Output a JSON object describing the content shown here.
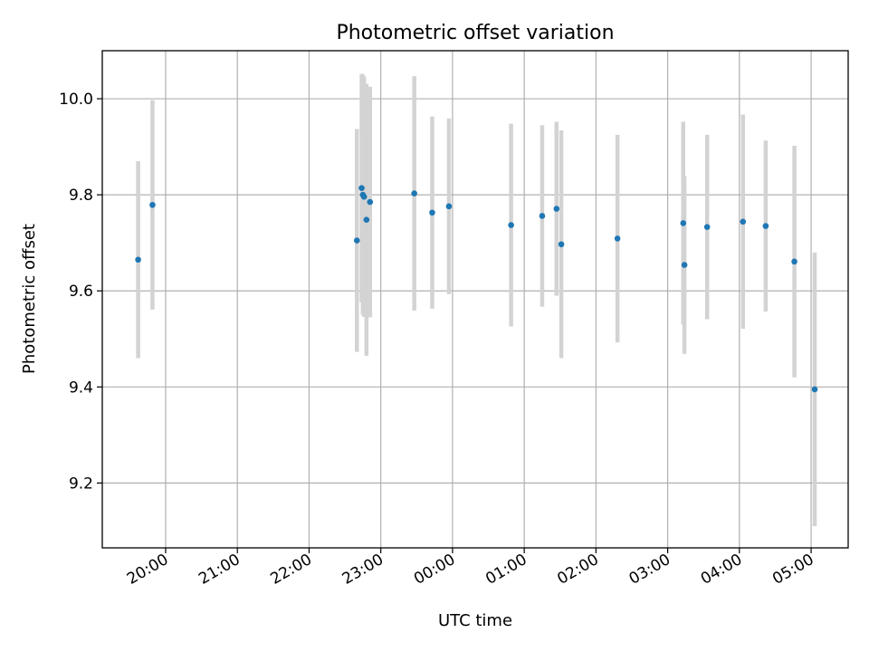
{
  "chart_data": {
    "type": "scatter",
    "title": "Photometric offset variation",
    "xlabel": "UTC time",
    "ylabel": "Photometric offset",
    "x_ticks": [
      "20:00",
      "21:00",
      "22:00",
      "23:00",
      "00:00",
      "01:00",
      "02:00",
      "03:00",
      "04:00",
      "05:00"
    ],
    "y_ticks": [
      "9.2",
      "9.4",
      "9.6",
      "9.8",
      "10.0"
    ],
    "ylim": [
      9.065,
      10.1
    ],
    "xlim": [
      "19:07",
      "05:31"
    ],
    "grid": true,
    "marker_color": "#1f77b4",
    "errorbar_color": "#d3d3d3",
    "points": [
      {
        "x": "19:37",
        "y": 9.665,
        "err": 0.205
      },
      {
        "x": "19:49",
        "y": 9.779,
        "err": 0.218
      },
      {
        "x": "22:40",
        "y": 9.705,
        "err": 0.232
      },
      {
        "x": "22:44",
        "y": 9.814,
        "err": 0.238
      },
      {
        "x": "22:45",
        "y": 9.8,
        "err": 0.25
      },
      {
        "x": "22:46",
        "y": 9.796,
        "err": 0.25
      },
      {
        "x": "22:48",
        "y": 9.748,
        "err": 0.283
      },
      {
        "x": "22:51",
        "y": 9.785,
        "err": 0.24
      },
      {
        "x": "23:28",
        "y": 9.803,
        "err": 0.244
      },
      {
        "x": "23:43",
        "y": 9.763,
        "err": 0.2
      },
      {
        "x": "23:57",
        "y": 9.776,
        "err": 0.183
      },
      {
        "x": "00:49",
        "y": 9.737,
        "err": 0.211
      },
      {
        "x": "01:15",
        "y": 9.756,
        "err": 0.189
      },
      {
        "x": "01:27",
        "y": 9.771,
        "err": 0.181
      },
      {
        "x": "01:31",
        "y": 9.697,
        "err": 0.237
      },
      {
        "x": "02:18",
        "y": 9.709,
        "err": 0.216
      },
      {
        "x": "03:13",
        "y": 9.741,
        "err": 0.211
      },
      {
        "x": "03:14",
        "y": 9.654,
        "err": 0.185
      },
      {
        "x": "03:33",
        "y": 9.733,
        "err": 0.192
      },
      {
        "x": "04:03",
        "y": 9.744,
        "err": 0.223
      },
      {
        "x": "04:22",
        "y": 9.735,
        "err": 0.178
      },
      {
        "x": "04:46",
        "y": 9.661,
        "err": 0.241
      },
      {
        "x": "05:03",
        "y": 9.395,
        "err": 0.285
      }
    ]
  }
}
